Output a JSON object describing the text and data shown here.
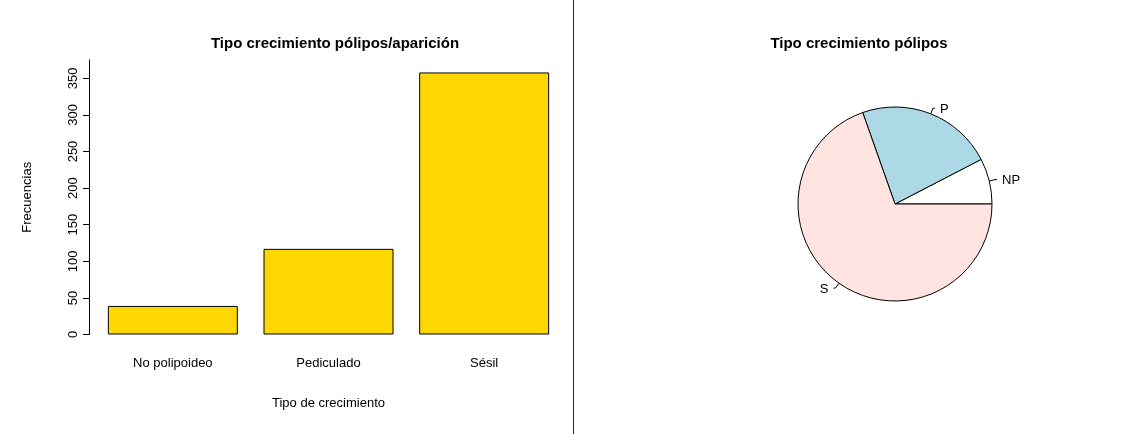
{
  "chart_data": [
    {
      "type": "bar",
      "title": "Tipo crecimiento pólipos/aparición",
      "xlabel": "Tipo de crecimiento",
      "ylabel": "Frecuencias",
      "categories": [
        "No polipoideo",
        "Pediculado",
        "Sésil"
      ],
      "values": [
        39,
        117,
        358
      ],
      "color": "#ffd700",
      "ylim": [
        0,
        375
      ],
      "yticks": [
        0,
        50,
        100,
        150,
        200,
        250,
        300,
        350
      ]
    },
    {
      "type": "pie",
      "title": "Tipo crecimiento pólipos",
      "categories": [
        "NP",
        "P",
        "S"
      ],
      "values": [
        7.6,
        22.8,
        69.6
      ],
      "colors": [
        "#ffffff",
        "#add8e6",
        "#ffe4e1"
      ]
    }
  ]
}
